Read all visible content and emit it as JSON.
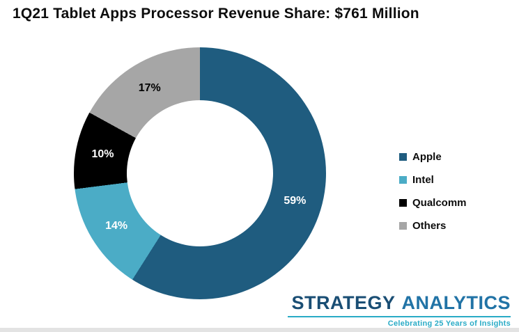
{
  "title": "1Q21 Tablet Apps Processor Revenue Share: $761 Million",
  "chart_data": {
    "type": "pie",
    "subtype": "donut",
    "title": "1Q21 Tablet Apps Processor Revenue Share: $761 Million",
    "total_label": "$761 Million",
    "categories": [
      "Apple",
      "Intel",
      "Qualcomm",
      "Others"
    ],
    "values": [
      59,
      14,
      10,
      17
    ],
    "unit": "%",
    "labels": [
      "59%",
      "14%",
      "10%",
      "17%"
    ],
    "colors": [
      "#1f5c7f",
      "#4bacc6",
      "#000000",
      "#a6a6a6"
    ],
    "label_colors": [
      "#ffffff",
      "#ffffff",
      "#ffffff",
      "#000000"
    ],
    "start_angle_deg": 0,
    "direction": "clockwise",
    "legend_position": "right",
    "legend_entries": [
      "Apple",
      "Intel",
      "Qualcomm",
      "Others"
    ]
  },
  "logo": {
    "strategy": "STRATEGY",
    "analytics": "ANALYTICS",
    "tagline": "Celebrating 25 Years of Insights"
  }
}
